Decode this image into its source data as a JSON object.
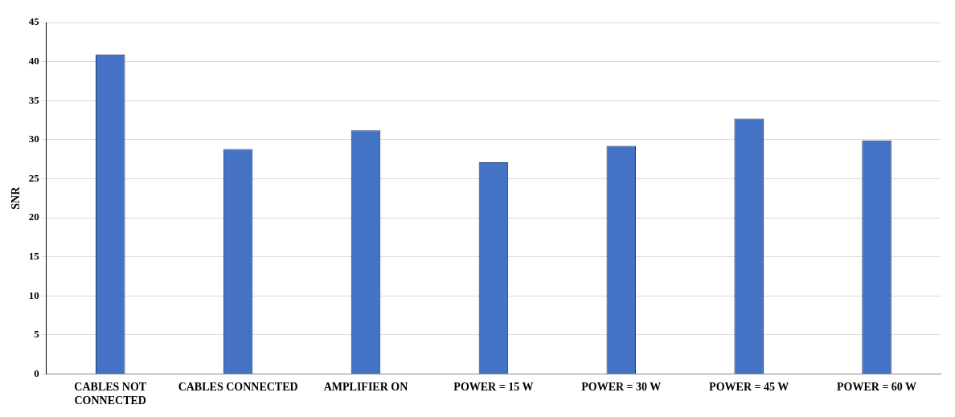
{
  "chart_data": {
    "type": "bar",
    "ylabel": "SNR",
    "categories": [
      "CABLES NOT CONNECTED",
      "CABLES CONNECTED",
      "AMPLIFIER ON",
      "POWER = 15 W",
      "POWER = 30 W",
      "POWER = 45 W",
      "POWER = 60 W"
    ],
    "values": [
      40.9,
      28.8,
      31.2,
      27.1,
      29.2,
      32.7,
      29.9
    ],
    "color": "#4472c4",
    "ylim": [
      0,
      45
    ],
    "yticks": [
      0,
      5,
      10,
      15,
      20,
      25,
      30,
      35,
      40,
      45
    ],
    "grid": "y",
    "legend": false
  }
}
